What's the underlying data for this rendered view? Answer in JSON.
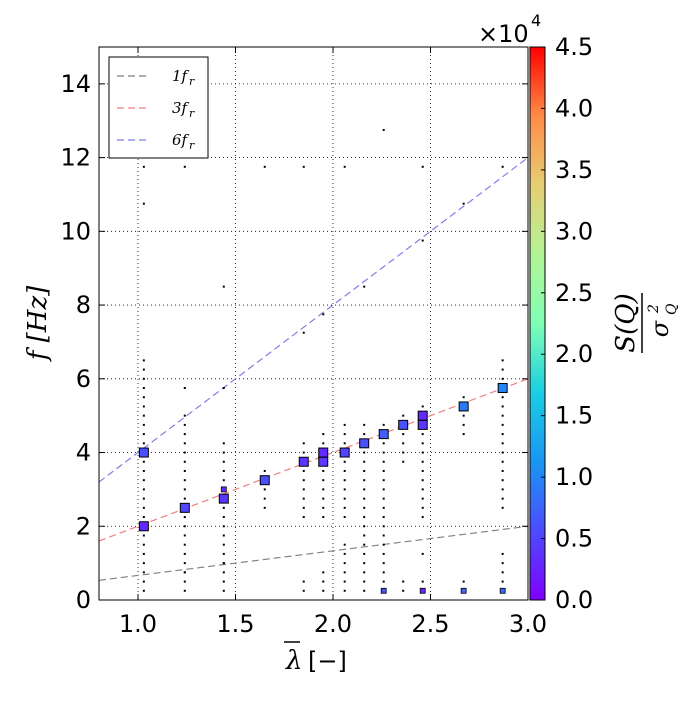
{
  "chart_data": {
    "type": "scatter",
    "title": "",
    "xlabel": "λ [−]",
    "ylabel": "f [Hz]",
    "xlim": [
      0.8,
      3.0
    ],
    "ylim": [
      0,
      15
    ],
    "xticks": [
      1.0,
      1.5,
      2.0,
      2.5,
      3.0
    ],
    "xtick_labels": [
      "1.0",
      "1.5",
      "2.0",
      "2.5",
      "3.0"
    ],
    "yticks": [
      0,
      2,
      4,
      6,
      8,
      10,
      12,
      14
    ],
    "ytick_labels": [
      "0",
      "2",
      "4",
      "6",
      "8",
      "10",
      "12",
      "14"
    ],
    "grid": true,
    "legend_position": "top-left",
    "legend": [
      {
        "label": "1f",
        "sub": "r",
        "factor": 1,
        "color": "#7f7f7f"
      },
      {
        "label": "3f",
        "sub": "r",
        "factor": 3,
        "color": "#f08080"
      },
      {
        "label": "6f",
        "sub": "r",
        "factor": 6,
        "color": "#7f7fe6"
      }
    ],
    "rotor_frequency_line": {
      "slope": 0.6667,
      "intercept": 0.0
    },
    "markers": [
      {
        "x": 1.03,
        "y": 4.0,
        "value": 0.6
      },
      {
        "x": 1.03,
        "y": 2.0,
        "value": 0.3
      },
      {
        "x": 1.24,
        "y": 2.5,
        "value": 0.5
      },
      {
        "x": 1.44,
        "y": 2.75,
        "value": 0.4
      },
      {
        "x": 1.65,
        "y": 3.25,
        "value": 0.6
      },
      {
        "x": 1.85,
        "y": 3.75,
        "value": 0.4
      },
      {
        "x": 1.95,
        "y": 3.75,
        "value": 0.4
      },
      {
        "x": 1.95,
        "y": 4.0,
        "value": 0.3
      },
      {
        "x": 2.06,
        "y": 4.0,
        "value": 0.5
      },
      {
        "x": 2.16,
        "y": 4.25,
        "value": 0.6
      },
      {
        "x": 2.26,
        "y": 4.5,
        "value": 0.7
      },
      {
        "x": 2.36,
        "y": 4.75,
        "value": 0.6
      },
      {
        "x": 2.46,
        "y": 5.0,
        "value": 0.3
      },
      {
        "x": 2.46,
        "y": 4.75,
        "value": 0.4
      },
      {
        "x": 2.67,
        "y": 5.25,
        "value": 0.9
      },
      {
        "x": 2.87,
        "y": 5.75,
        "value": 1.0
      }
    ],
    "small_markers": [
      {
        "x": 2.26,
        "y": 0.25,
        "value": 0.6
      },
      {
        "x": 2.46,
        "y": 0.25,
        "value": 0.3
      },
      {
        "x": 2.67,
        "y": 0.25,
        "value": 0.8
      },
      {
        "x": 2.87,
        "y": 0.25,
        "value": 0.8
      },
      {
        "x": 1.44,
        "y": 3.0,
        "value": 0.3
      }
    ],
    "scatter_points": [
      {
        "x": 1.03,
        "y_min": 0.25,
        "y_max": 6.5,
        "step": 0.25
      },
      {
        "x": 1.24,
        "y_min": 0.25,
        "y_max": 5.0,
        "step": 0.25
      },
      {
        "x": 1.44,
        "y_min": 0.25,
        "y_max": 4.25,
        "step": 0.25
      },
      {
        "x": 1.65,
        "y_min": 2.5,
        "y_max": 3.5,
        "step": 0.25
      },
      {
        "x": 1.85,
        "y_min": 2.25,
        "y_max": 4.25,
        "step": 0.25
      },
      {
        "x": 1.95,
        "y_min": 2.25,
        "y_max": 4.5,
        "step": 0.25
      },
      {
        "x": 2.06,
        "y_min": 2.25,
        "y_max": 4.75,
        "step": 0.25
      },
      {
        "x": 2.16,
        "y_min": 0.25,
        "y_max": 4.75,
        "step": 0.25
      },
      {
        "x": 2.26,
        "y_min": 0.25,
        "y_max": 4.75,
        "step": 0.25
      },
      {
        "x": 2.36,
        "y_min": 3.75,
        "y_max": 5.0,
        "step": 0.25
      },
      {
        "x": 2.46,
        "y_min": 2.25,
        "y_max": 5.25,
        "step": 0.25
      },
      {
        "x": 2.67,
        "y_min": 4.5,
        "y_max": 5.5,
        "step": 0.25
      },
      {
        "x": 2.87,
        "y_min": 2.5,
        "y_max": 6.5,
        "step": 0.25
      }
    ],
    "extra_points": [
      {
        "x": 1.85,
        "y": 0.25
      },
      {
        "x": 1.85,
        "y": 0.5
      },
      {
        "x": 1.95,
        "y": 0.25
      },
      {
        "x": 1.95,
        "y": 0.5
      },
      {
        "x": 1.95,
        "y": 0.75
      },
      {
        "x": 2.06,
        "y": 0.25
      },
      {
        "x": 2.06,
        "y": 0.5
      },
      {
        "x": 2.06,
        "y": 0.75
      },
      {
        "x": 2.06,
        "y": 1.0
      },
      {
        "x": 2.06,
        "y": 1.25
      },
      {
        "x": 2.06,
        "y": 1.5
      },
      {
        "x": 2.36,
        "y": 0.25
      },
      {
        "x": 2.36,
        "y": 0.5
      },
      {
        "x": 2.46,
        "y": 0.5
      },
      {
        "x": 2.46,
        "y": 1.25
      },
      {
        "x": 2.67,
        "y": 0.5
      },
      {
        "x": 2.87,
        "y": 0.5
      },
      {
        "x": 2.87,
        "y": 0.75
      },
      {
        "x": 2.87,
        "y": 1.0
      },
      {
        "x": 2.87,
        "y": 1.25
      },
      {
        "x": 1.44,
        "y": 1.0
      },
      {
        "x": 1.24,
        "y": 0.75
      },
      {
        "x": 1.85,
        "y": 7.25
      },
      {
        "x": 1.95,
        "y": 7.75
      },
      {
        "x": 2.16,
        "y": 8.5
      },
      {
        "x": 2.46,
        "y": 9.75
      },
      {
        "x": 2.67,
        "y": 10.75
      },
      {
        "x": 2.26,
        "y": 12.75
      },
      {
        "x": 1.03,
        "y": 10.75
      },
      {
        "x": 1.03,
        "y": 11.75
      },
      {
        "x": 1.24,
        "y": 11.75
      },
      {
        "x": 1.44,
        "y": 8.5
      },
      {
        "x": 1.44,
        "y": 5.75
      },
      {
        "x": 1.24,
        "y": 5.75
      },
      {
        "x": 2.87,
        "y": 11.75
      },
      {
        "x": 2.46,
        "y": 11.75
      },
      {
        "x": 2.06,
        "y": 11.75
      },
      {
        "x": 1.65,
        "y": 11.75
      },
      {
        "x": 1.85,
        "y": 11.75
      }
    ],
    "colorbar": {
      "label_numerator": "S(Q)",
      "label_denominator": "σ",
      "label_denominator_sup": "2",
      "label_denominator_sub": "Q",
      "multiplier": "×10",
      "multiplier_exp": "4",
      "range": [
        0.0,
        4.5
      ],
      "ticks": [
        0.0,
        0.5,
        1.0,
        1.5,
        2.0,
        2.5,
        3.0,
        3.5,
        4.0,
        4.5
      ],
      "tick_labels": [
        "0.0",
        "0.5",
        "1.0",
        "1.5",
        "2.0",
        "2.5",
        "3.0",
        "3.5",
        "4.0",
        "4.5"
      ],
      "colormap": "rainbow"
    }
  }
}
